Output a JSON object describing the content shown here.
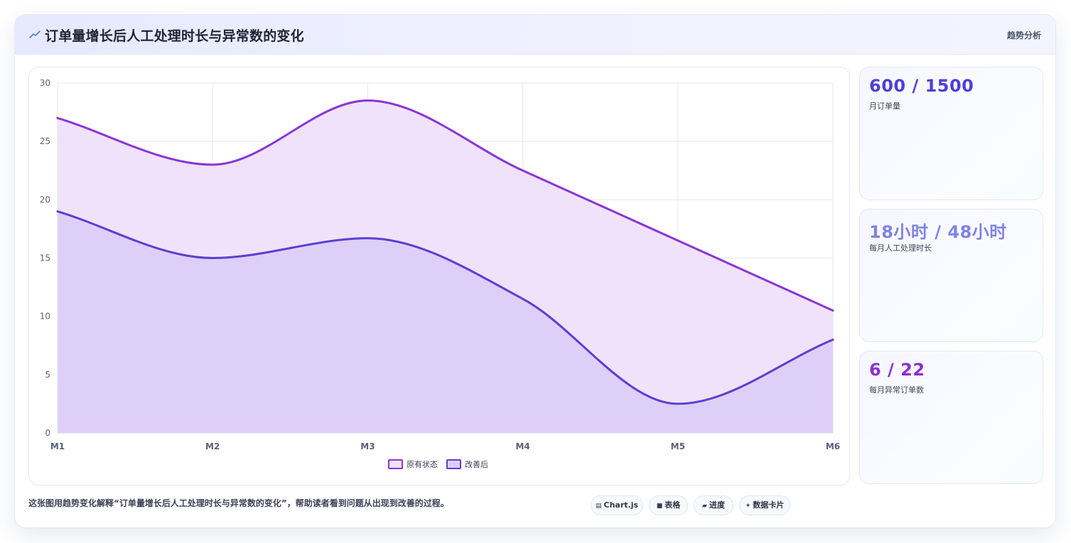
{
  "header": {
    "icon": "trend-line-icon",
    "title": "订单量增长后人工处理时长与异常数的变化",
    "tag": "趋势分析"
  },
  "stats": [
    {
      "value": "600 / 1500",
      "label": "月订单量",
      "color": "#4f3fd6"
    },
    {
      "value": "18小时 / 48小时",
      "label": "每月人工处理时长",
      "color": "#7f83e6"
    },
    {
      "value": "6 / 22",
      "label": "每月异常订单数",
      "color": "#8a2fd0"
    }
  ],
  "footnote": "这张图用趋势变化解释“订单量增长后人工处理时长与异常数的变化”，帮助读者看到问题从出现到改善的过程。",
  "chips": [
    {
      "icon": "chart-icon",
      "label": "Chart.js"
    },
    {
      "icon": "table-icon",
      "label": "表格"
    },
    {
      "icon": "progress-icon",
      "label": "进度"
    },
    {
      "icon": "sparkle-icon",
      "label": "数据卡片"
    }
  ],
  "chart_data": {
    "type": "area",
    "categories": [
      "M1",
      "M2",
      "M3",
      "M4",
      "M5",
      "M6"
    ],
    "series": [
      {
        "name": "原有状态",
        "values": [
          27,
          23,
          28.5,
          22.5,
          16.5,
          10.5
        ],
        "color": "#8b35d6",
        "fill": "#efe2fa"
      },
      {
        "name": "改善后",
        "values": [
          19,
          15,
          16.7,
          11.5,
          2.5,
          8
        ],
        "color": "#5a3fd2",
        "fill": "#dccdf8"
      }
    ],
    "yticks": [
      0,
      5,
      10,
      15,
      20,
      25,
      30
    ],
    "ylim": [
      0,
      30
    ],
    "grid": true,
    "legend": "bottom-center",
    "xlabel": "",
    "ylabel": ""
  }
}
